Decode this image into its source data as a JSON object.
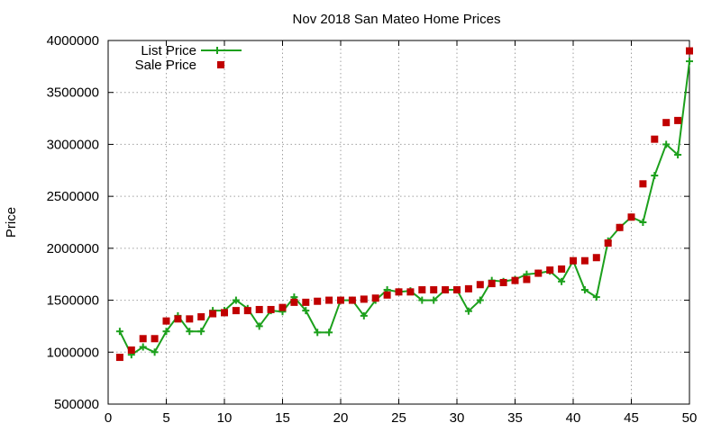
{
  "chart_data": {
    "type": "line",
    "title": "Nov 2018 San Mateo Home Prices",
    "xlabel": "",
    "ylabel": "Price",
    "xlim": [
      0,
      50
    ],
    "ylim": [
      500000,
      4000000
    ],
    "xticks": [
      0,
      5,
      10,
      15,
      20,
      25,
      30,
      35,
      40,
      45,
      50
    ],
    "yticks": [
      500000,
      1000000,
      1500000,
      2000000,
      2500000,
      3000000,
      3500000,
      4000000
    ],
    "grid": true,
    "legend_position": "top-left",
    "x": [
      1,
      2,
      3,
      4,
      5,
      6,
      7,
      8,
      9,
      10,
      11,
      12,
      13,
      14,
      15,
      16,
      17,
      18,
      19,
      20,
      21,
      22,
      23,
      24,
      25,
      26,
      27,
      28,
      29,
      30,
      31,
      32,
      33,
      34,
      35,
      36,
      37,
      38,
      39,
      40,
      41,
      42,
      43,
      44,
      45,
      46,
      47,
      48,
      49,
      50
    ],
    "series": [
      {
        "name": "List Price",
        "style": "lines+crosses",
        "color": "#1ca01c",
        "values": [
          1200000,
          975000,
          1050000,
          1000000,
          1200000,
          1350000,
          1200000,
          1200000,
          1400000,
          1400000,
          1500000,
          1420000,
          1250000,
          1400000,
          1390000,
          1530000,
          1400000,
          1190000,
          1190000,
          1500000,
          1500000,
          1350000,
          1500000,
          1600000,
          1580000,
          1590000,
          1500000,
          1500000,
          1600000,
          1600000,
          1395000,
          1500000,
          1690000,
          1680000,
          1700000,
          1750000,
          1760000,
          1780000,
          1680000,
          1880000,
          1600000,
          1530000,
          2070000,
          2200000,
          2300000,
          2250000,
          2700000,
          3000000,
          2900000,
          3800000
        ]
      },
      {
        "name": "Sale Price",
        "style": "squares",
        "color": "#c00000",
        "values": [
          950000,
          1020000,
          1130000,
          1130000,
          1300000,
          1320000,
          1320000,
          1340000,
          1370000,
          1380000,
          1400000,
          1400000,
          1410000,
          1410000,
          1430000,
          1480000,
          1480000,
          1490000,
          1500000,
          1500000,
          1500000,
          1510000,
          1520000,
          1550000,
          1580000,
          1580000,
          1600000,
          1600000,
          1600000,
          1600000,
          1610000,
          1650000,
          1660000,
          1670000,
          1690000,
          1700000,
          1760000,
          1790000,
          1800000,
          1880000,
          1880000,
          1910000,
          2050000,
          2200000,
          2300000,
          2620000,
          3050000,
          3210000,
          3230000,
          3900000
        ]
      }
    ]
  }
}
